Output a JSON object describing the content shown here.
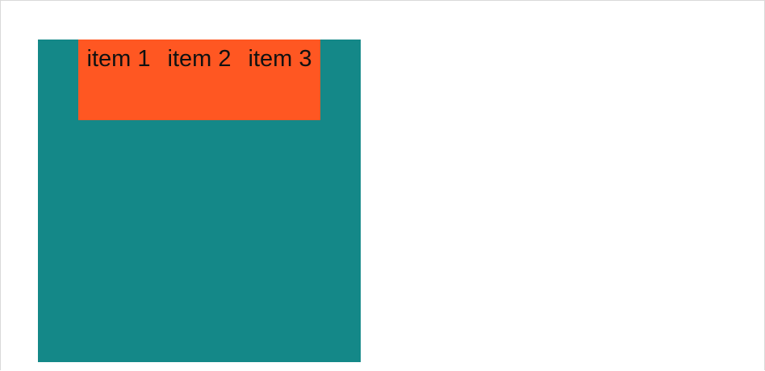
{
  "colors": {
    "page_background": "#ffffff",
    "frame_border": "#d9d9d9",
    "container_background": "#148888",
    "row_background": "#ff5722",
    "text": "#111111"
  },
  "flex_demo": {
    "items": [
      {
        "label": "item 1"
      },
      {
        "label": "item 2"
      },
      {
        "label": "item 3"
      }
    ]
  }
}
